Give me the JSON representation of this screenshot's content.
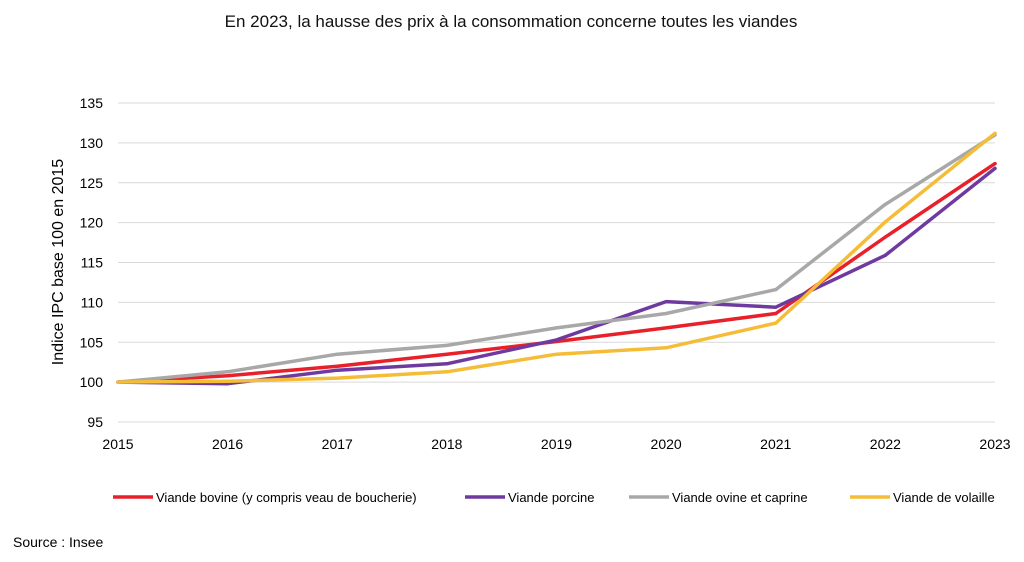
{
  "chart_data": {
    "type": "line",
    "title": "En 2023, la hausse des prix à la consommation concerne toutes les viandes",
    "xlabel": "",
    "ylabel": "Indice IPC base 100 en 2015",
    "x": [
      "2015",
      "2016",
      "2017",
      "2018",
      "2019",
      "2020",
      "2021",
      "2022",
      "2023"
    ],
    "ylim": [
      95,
      135
    ],
    "yticks": [
      "95",
      "100",
      "105",
      "110",
      "115",
      "120",
      "125",
      "130",
      "135"
    ],
    "grid": true,
    "legend_position": "bottom",
    "series": [
      {
        "name": "Viande bovine (y compris veau de boucherie)",
        "color": "#e8202a",
        "values": [
          100,
          100.8,
          102.0,
          103.5,
          105.1,
          106.8,
          108.6,
          118.2,
          127.4
        ]
      },
      {
        "name": "Viande porcine",
        "color": "#6f3aa0",
        "values": [
          100,
          99.8,
          101.5,
          102.3,
          105.3,
          110.1,
          109.4,
          115.9,
          126.8
        ]
      },
      {
        "name": "Viande ovine et caprine",
        "color": "#a8a8a8",
        "values": [
          100,
          101.3,
          103.5,
          104.6,
          106.8,
          108.6,
          111.6,
          122.3,
          131.0
        ]
      },
      {
        "name": "Viande de volaille",
        "color": "#f5bd37",
        "values": [
          100,
          100.1,
          100.5,
          101.3,
          103.5,
          104.3,
          107.4,
          120.1,
          131.2
        ]
      }
    ]
  },
  "source": "Source : Insee"
}
